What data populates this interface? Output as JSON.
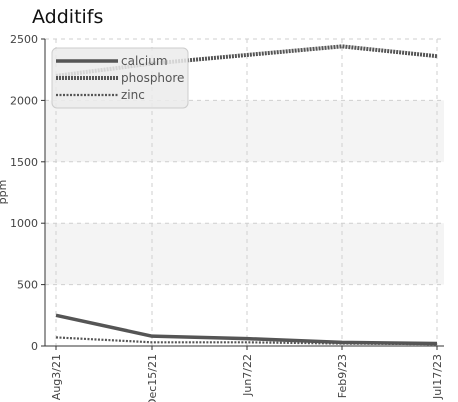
{
  "chart_data": {
    "type": "line",
    "title": "Additifs",
    "ylabel": "ppm",
    "xlabel": "",
    "categories": [
      "Aug3/21",
      "Dec15/21",
      "Jun7/22",
      "Feb9/23",
      "Jul17/23"
    ],
    "x_tick_labels": [
      "Aug3/21",
      "Dec15/21",
      "Jun7/22",
      "Feb9/23",
      "Jul17/23"
    ],
    "y_ticks": [
      0,
      500,
      1000,
      1500,
      2000,
      2500
    ],
    "ylim": [
      0,
      2500
    ],
    "grid": true,
    "legend_position": "top-left",
    "series": [
      {
        "name": "calcium",
        "values": [
          250,
          80,
          60,
          30,
          20
        ],
        "color": "#555555",
        "style": "solid"
      },
      {
        "name": "phosphore",
        "values": [
          2200,
          2300,
          2370,
          2440,
          2360
        ],
        "color": "#555555",
        "style": "dotted-thick"
      },
      {
        "name": "zinc",
        "values": [
          70,
          30,
          30,
          20,
          15
        ],
        "color": "#555555",
        "style": "dotted-thin"
      }
    ]
  }
}
